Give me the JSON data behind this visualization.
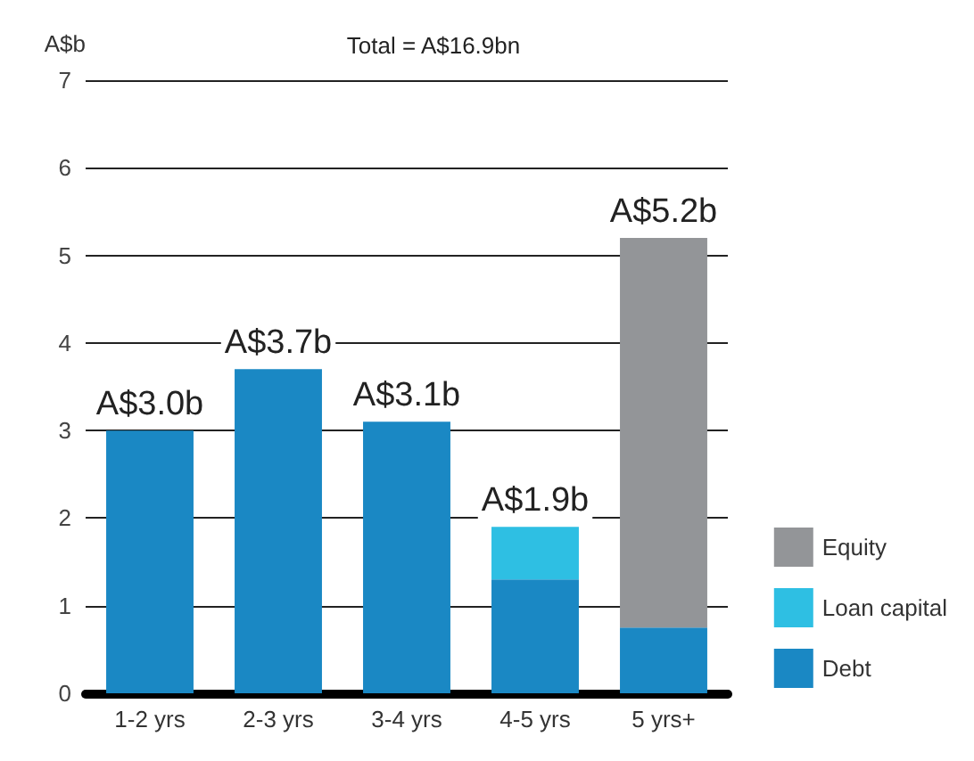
{
  "chart_data": {
    "type": "bar",
    "title": "Total = A$16.9bn",
    "ylabel": "A$b",
    "stacked": true,
    "categories": [
      "1-2 yrs",
      "2-3 yrs",
      "3-4 yrs",
      "4-5 yrs",
      "5 yrs+"
    ],
    "series": [
      {
        "name": "Debt",
        "color": "#1a88c4",
        "values": [
          3.0,
          3.7,
          3.1,
          1.3,
          0.75
        ]
      },
      {
        "name": "Loan capital",
        "color": "#2ebfe3",
        "values": [
          null,
          null,
          null,
          0.6,
          null
        ]
      },
      {
        "name": "Equity",
        "color": "#939598",
        "values": [
          null,
          null,
          null,
          null,
          4.45
        ]
      }
    ],
    "totals": [
      "A$3.0b",
      "A$3.7b",
      "A$3.1b",
      "A$1.9b",
      "A$5.2b"
    ],
    "ylim": [
      0,
      7
    ],
    "yticks": [
      0,
      1,
      2,
      3,
      4,
      5,
      6,
      7
    ],
    "grid": "y",
    "legend": "bottom right"
  }
}
